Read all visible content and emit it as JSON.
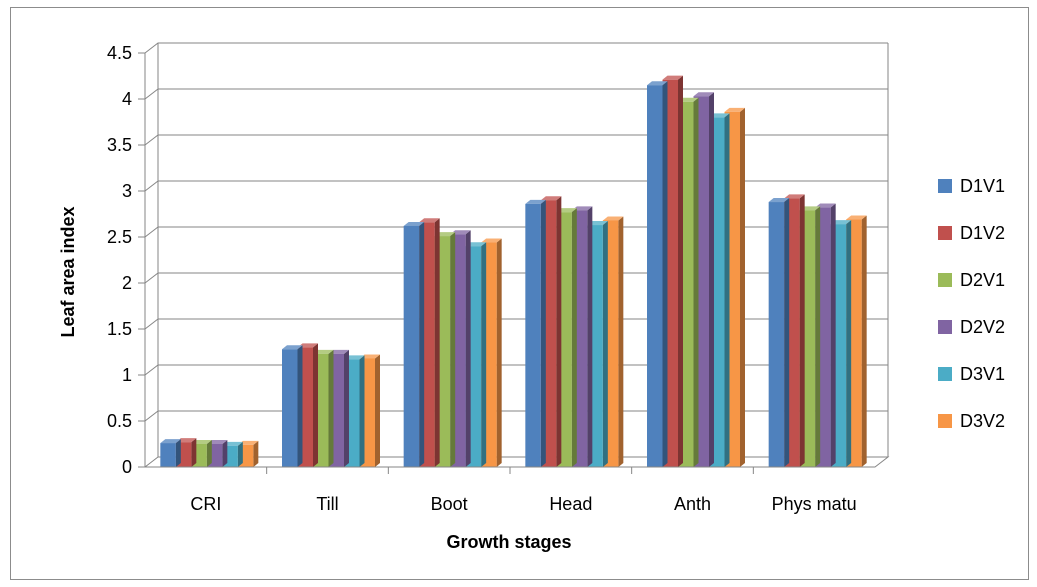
{
  "chart_data": {
    "type": "bar",
    "xlabel": "Growth stages",
    "ylabel": "Leaf area index",
    "ylim": [
      0,
      4.5
    ],
    "yticks": [
      "0",
      "0.5",
      "1",
      "1.5",
      "2",
      "2.5",
      "3",
      "3.5",
      "4",
      "4.5"
    ],
    "grid": true,
    "legend_position": "right",
    "categories": [
      "CRI",
      "Till",
      "Boot",
      "Head",
      "Anth",
      "Phys matu"
    ],
    "series": [
      {
        "name": "D1V1",
        "color": "#4f81bd",
        "values": [
          0.26,
          1.28,
          2.62,
          2.86,
          4.15,
          2.88
        ]
      },
      {
        "name": "D1V2",
        "color": "#c0504d",
        "values": [
          0.27,
          1.3,
          2.66,
          2.9,
          4.21,
          2.92
        ]
      },
      {
        "name": "D2V1",
        "color": "#9bbb59",
        "values": [
          0.25,
          1.23,
          2.51,
          2.77,
          3.97,
          2.79
        ]
      },
      {
        "name": "D2V2",
        "color": "#8064a2",
        "values": [
          0.25,
          1.23,
          2.53,
          2.79,
          4.03,
          2.82
        ]
      },
      {
        "name": "D3V1",
        "color": "#4bacc6",
        "values": [
          0.23,
          1.17,
          2.4,
          2.63,
          3.8,
          2.64
        ]
      },
      {
        "name": "D3V2",
        "color": "#f79646",
        "values": [
          0.24,
          1.18,
          2.44,
          2.68,
          3.86,
          2.69
        ]
      }
    ]
  }
}
